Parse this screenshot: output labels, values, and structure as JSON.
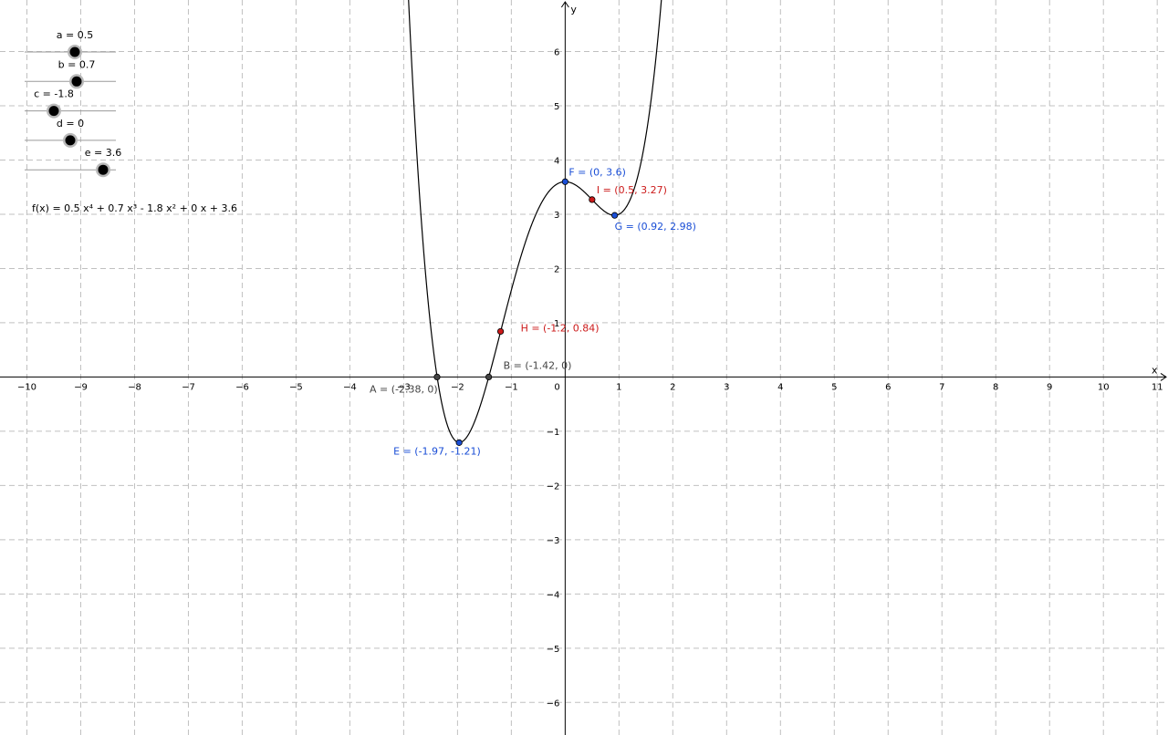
{
  "axes": {
    "x_label": "x",
    "y_label": "y",
    "x_range": [
      -10.5,
      11.2
    ],
    "y_range": [
      -6.6,
      6.95
    ],
    "x_ticks": [
      -10,
      -9,
      -8,
      -7,
      -6,
      -5,
      -4,
      -3,
      -2,
      -1,
      1,
      2,
      3,
      4,
      5,
      6,
      7,
      8,
      9,
      10,
      11
    ],
    "y_ticks": [
      -6,
      -5,
      -4,
      -3,
      -2,
      -1,
      1,
      2,
      3,
      4,
      5,
      6
    ],
    "origin_label": "0",
    "grid": true
  },
  "sliders": [
    {
      "name": "a",
      "label": "a = 0.5",
      "value": 0.5,
      "min": -5,
      "max": 5
    },
    {
      "name": "b",
      "label": "b = 0.7",
      "value": 0.7,
      "min": -5,
      "max": 5
    },
    {
      "name": "c",
      "label": "c = -1.8",
      "value": -1.8,
      "min": -5,
      "max": 5
    },
    {
      "name": "d",
      "label": "d = 0",
      "value": 0,
      "min": -5,
      "max": 5
    },
    {
      "name": "e",
      "label": "e = 3.6",
      "value": 3.6,
      "min": -5,
      "max": 5
    }
  ],
  "function": {
    "label": "f(x) = 0.5 x⁴ + 0.7 x³ - 1.8 x² + 0 x + 3.6",
    "coefficients": [
      0.5,
      0.7,
      -1.8,
      0,
      3.6
    ],
    "color": "#000000"
  },
  "points": [
    {
      "name": "A",
      "x": -2.38,
      "y": 0,
      "label": "A = (-2.38, 0)",
      "color": "#444444"
    },
    {
      "name": "B",
      "x": -1.42,
      "y": 0,
      "label": "B = (-1.42, 0)",
      "color": "#444444"
    },
    {
      "name": "E",
      "x": -1.97,
      "y": -1.21,
      "label": "E = (-1.97, -1.21)",
      "color": "#1a4ed6"
    },
    {
      "name": "F",
      "x": 0,
      "y": 3.6,
      "label": "F = (0, 3.6)",
      "color": "#1a4ed6"
    },
    {
      "name": "G",
      "x": 0.92,
      "y": 2.98,
      "label": "G = (0.92, 2.98)",
      "color": "#1a4ed6"
    },
    {
      "name": "H",
      "x": -1.2,
      "y": 0.84,
      "label": "H = (-1.2, 0.84)",
      "color": "#cc1a1a"
    },
    {
      "name": "I",
      "x": 0.5,
      "y": 3.27,
      "label": "I = (0.5, 3.27)",
      "color": "#cc1a1a"
    }
  ]
}
